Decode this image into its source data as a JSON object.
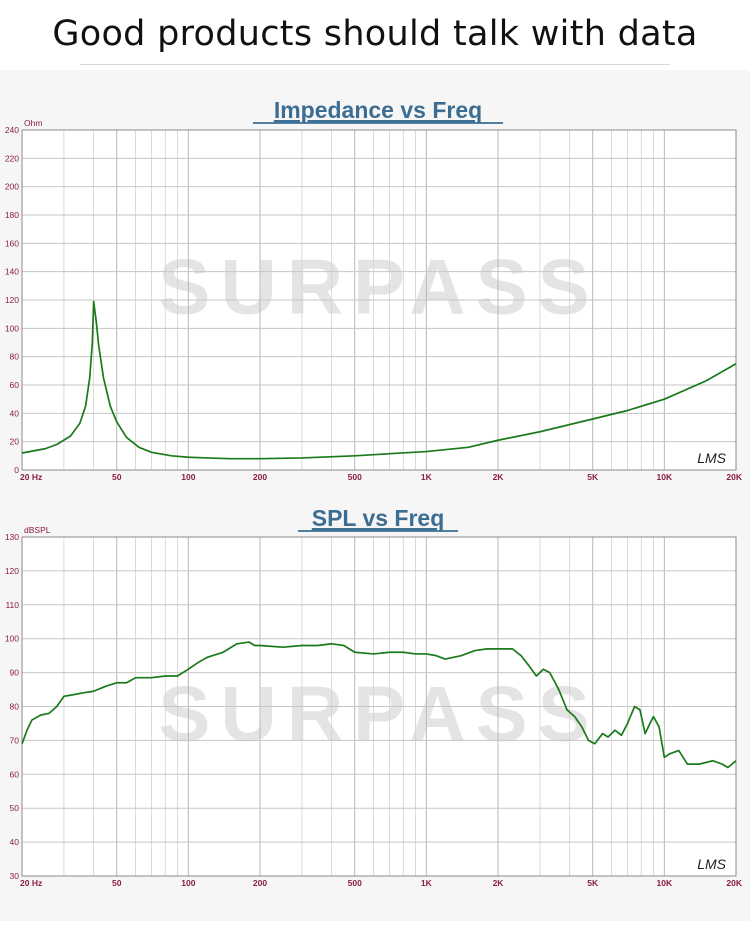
{
  "header": {
    "title": "Good products should talk with data"
  },
  "watermark": {
    "text": "SURPASS"
  },
  "chart_data": [
    {
      "type": "line",
      "title": "Impedance vs Freq",
      "ylabel": "Ohm",
      "xscale": "log",
      "xlim": [
        20,
        20000
      ],
      "ylim": [
        0,
        240
      ],
      "grid": true,
      "yticks": [
        0,
        20,
        40,
        60,
        80,
        100,
        120,
        140,
        160,
        180,
        200,
        220,
        240
      ],
      "xtick_labels": [
        {
          "x": 20,
          "label": "20  Hz"
        },
        {
          "x": 50,
          "label": "50"
        },
        {
          "x": 100,
          "label": "100"
        },
        {
          "x": 200,
          "label": "200"
        },
        {
          "x": 500,
          "label": "500"
        },
        {
          "x": 1000,
          "label": "1K"
        },
        {
          "x": 2000,
          "label": "2K"
        },
        {
          "x": 5000,
          "label": "5K"
        },
        {
          "x": 10000,
          "label": "10K"
        },
        {
          "x": 20000,
          "label": "20K"
        }
      ],
      "signature": "LMS",
      "series": [
        {
          "color": "#1a7a1a",
          "points": [
            [
              20,
              12
            ],
            [
              25,
              15
            ],
            [
              28,
              18
            ],
            [
              32,
              24
            ],
            [
              35,
              33
            ],
            [
              37,
              45
            ],
            [
              38.5,
              65
            ],
            [
              39.5,
              90
            ],
            [
              40,
              119
            ],
            [
              41,
              105
            ],
            [
              42,
              88
            ],
            [
              44,
              65
            ],
            [
              47,
              45
            ],
            [
              50,
              34
            ],
            [
              55,
              23
            ],
            [
              62,
              16
            ],
            [
              70,
              12.5
            ],
            [
              85,
              10
            ],
            [
              100,
              9
            ],
            [
              120,
              8.5
            ],
            [
              150,
              8
            ],
            [
              200,
              8
            ],
            [
              300,
              8.5
            ],
            [
              500,
              10
            ],
            [
              700,
              11.5
            ],
            [
              1000,
              13
            ],
            [
              1500,
              16
            ],
            [
              2000,
              21
            ],
            [
              3000,
              27
            ],
            [
              5000,
              36
            ],
            [
              7000,
              42
            ],
            [
              10000,
              50
            ],
            [
              15000,
              63
            ],
            [
              20000,
              75
            ]
          ]
        }
      ]
    },
    {
      "type": "line",
      "title": "SPL vs Freq",
      "ylabel": "dBSPL",
      "xscale": "log",
      "xlim": [
        20,
        20000
      ],
      "ylim": [
        30,
        130
      ],
      "grid": true,
      "yticks": [
        30,
        40,
        50,
        60,
        70,
        80,
        90,
        100,
        110,
        120,
        130
      ],
      "xtick_labels": [
        {
          "x": 20,
          "label": "20  Hz"
        },
        {
          "x": 50,
          "label": "50"
        },
        {
          "x": 100,
          "label": "100"
        },
        {
          "x": 200,
          "label": "200"
        },
        {
          "x": 500,
          "label": "500"
        },
        {
          "x": 1000,
          "label": "1K"
        },
        {
          "x": 2000,
          "label": "2K"
        },
        {
          "x": 5000,
          "label": "5K"
        },
        {
          "x": 10000,
          "label": "10K"
        },
        {
          "x": 20000,
          "label": "20K"
        }
      ],
      "signature": "LMS",
      "series": [
        {
          "color": "#1a7a1a",
          "points": [
            [
              20,
              69
            ],
            [
              21,
              73
            ],
            [
              22,
              76
            ],
            [
              24,
              77.5
            ],
            [
              26,
              78
            ],
            [
              28,
              80
            ],
            [
              30,
              83
            ],
            [
              33,
              83.5
            ],
            [
              36,
              84
            ],
            [
              40,
              84.5
            ],
            [
              45,
              86
            ],
            [
              50,
              87
            ],
            [
              55,
              87
            ],
            [
              60,
              88.5
            ],
            [
              70,
              88.5
            ],
            [
              80,
              89
            ],
            [
              90,
              89
            ],
            [
              100,
              91
            ],
            [
              110,
              93
            ],
            [
              120,
              94.5
            ],
            [
              140,
              96
            ],
            [
              160,
              98.5
            ],
            [
              180,
              99
            ],
            [
              190,
              98
            ],
            [
              200,
              98
            ],
            [
              250,
              97.5
            ],
            [
              300,
              98
            ],
            [
              350,
              98
            ],
            [
              400,
              98.5
            ],
            [
              450,
              98
            ],
            [
              500,
              96
            ],
            [
              600,
              95.5
            ],
            [
              700,
              96
            ],
            [
              800,
              96
            ],
            [
              900,
              95.5
            ],
            [
              1000,
              95.5
            ],
            [
              1100,
              95
            ],
            [
              1200,
              94
            ],
            [
              1400,
              95
            ],
            [
              1600,
              96.5
            ],
            [
              1800,
              97
            ],
            [
              2000,
              97
            ],
            [
              2300,
              97
            ],
            [
              2500,
              95
            ],
            [
              2700,
              92
            ],
            [
              2900,
              89
            ],
            [
              3100,
              91
            ],
            [
              3300,
              90
            ],
            [
              3600,
              85
            ],
            [
              3900,
              79
            ],
            [
              4200,
              77
            ],
            [
              4500,
              74
            ],
            [
              4800,
              70
            ],
            [
              5100,
              69
            ],
            [
              5500,
              72
            ],
            [
              5800,
              71
            ],
            [
              6200,
              73
            ],
            [
              6600,
              71.5
            ],
            [
              7000,
              75
            ],
            [
              7500,
              80
            ],
            [
              7900,
              79
            ],
            [
              8300,
              72
            ],
            [
              8700,
              75
            ],
            [
              9000,
              77
            ],
            [
              9500,
              74
            ],
            [
              10000,
              65
            ],
            [
              10500,
              66
            ],
            [
              11500,
              67
            ],
            [
              12500,
              63
            ],
            [
              14000,
              63
            ],
            [
              16000,
              64
            ],
            [
              17500,
              63
            ],
            [
              18500,
              62
            ],
            [
              20000,
              64
            ]
          ]
        }
      ]
    }
  ]
}
